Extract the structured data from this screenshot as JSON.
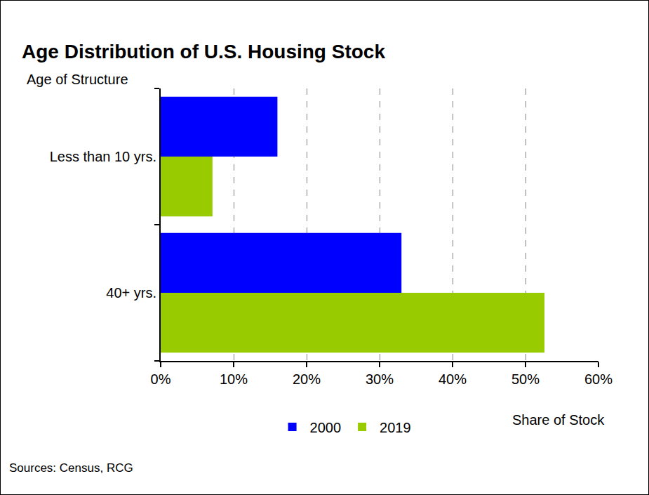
{
  "chart_data": {
    "type": "bar",
    "title": "Age Distribution of U.S. Housing Stock",
    "xlabel": "Share of Stock",
    "ylabel": "Age of Structure",
    "annotations": [
      "Sources: Census, RCG"
    ],
    "orientation": "horizontal",
    "categories": [
      "Less than 10 yrs.",
      "40+ yrs."
    ],
    "series": [
      {
        "name": "2000",
        "color": "#0000ff",
        "values": [
          16,
          33
        ]
      },
      {
        "name": "2019",
        "color": "#99cc00",
        "values": [
          7.1,
          52.6
        ]
      }
    ],
    "xlim": [
      0,
      60
    ],
    "xticks": [
      {
        "value": 0,
        "label": "0%"
      },
      {
        "value": 10,
        "label": "10%"
      },
      {
        "value": 20,
        "label": "20%"
      },
      {
        "value": 30,
        "label": "30%"
      },
      {
        "value": 40,
        "label": "40%"
      },
      {
        "value": 50,
        "label": "50%"
      },
      {
        "value": 60,
        "label": "60%"
      }
    ],
    "grid": true,
    "legend": "bottom"
  }
}
